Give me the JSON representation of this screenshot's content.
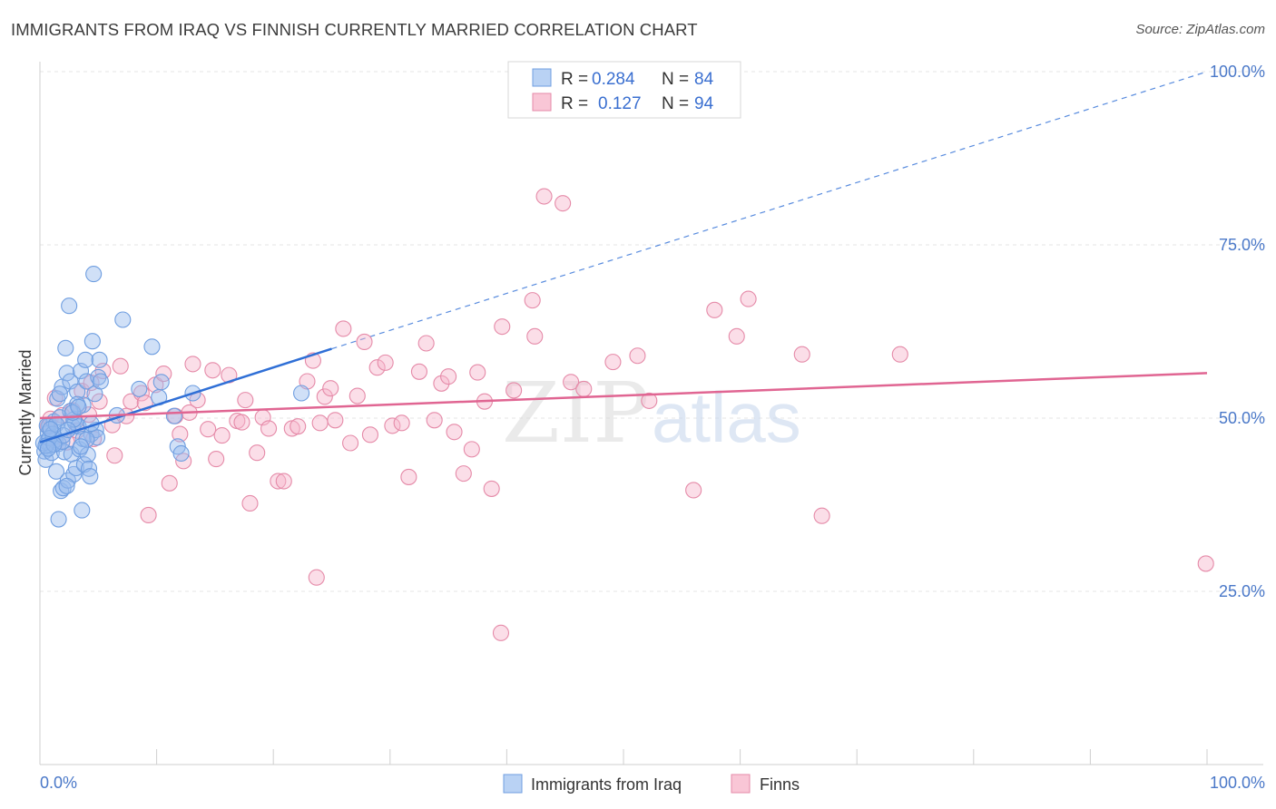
{
  "title": "IMMIGRANTS FROM IRAQ VS FINNISH CURRENTLY MARRIED CORRELATION CHART",
  "source": "Source: ZipAtlas.com",
  "watermark": {
    "zip": "ZIP",
    "atlas": "atlas"
  },
  "colors": {
    "blue": "#5b8fd9",
    "blue_line": "#2f6fd6",
    "pink": "#e58aa8",
    "pink_line": "#e06592",
    "tick": "#4a78c8"
  },
  "legend": {
    "rows": [
      {
        "r_label": "R =",
        "r_value": "0.284",
        "n_label": "N =",
        "n_value": "84"
      },
      {
        "r_label": "R =",
        "r_value": "0.127",
        "n_label": "N =",
        "n_value": "94"
      }
    ]
  },
  "chart_data": {
    "type": "scatter",
    "title": "IMMIGRANTS FROM IRAQ VS FINNISH CURRENTLY MARRIED CORRELATION CHART",
    "xlabel": "",
    "ylabel": "Currently Married",
    "xlim": [
      0,
      100
    ],
    "ylim": [
      0,
      105
    ],
    "x_tick_labels": [
      "0.0%",
      "100.0%"
    ],
    "y_ticks": [
      25,
      50,
      75,
      100
    ],
    "y_tick_labels": [
      "25.0%",
      "50.0%",
      "75.0%",
      "100.0%"
    ],
    "grid": true,
    "series": [
      {
        "name": "Immigrants from Iraq",
        "r": 0.284,
        "n": 84,
        "trend": {
          "x": [
            0,
            25
          ],
          "y": [
            46.5,
            60.0
          ],
          "extended_to": [
            100,
            100.0
          ]
        },
        "points": [
          [
            0.4,
            45.2
          ],
          [
            0.5,
            44.0
          ],
          [
            0.6,
            46.5
          ],
          [
            0.7,
            47.8
          ],
          [
            0.8,
            48.9
          ],
          [
            0.9,
            46.1
          ],
          [
            1.0,
            45.0
          ],
          [
            1.1,
            47.2
          ],
          [
            1.2,
            49.5
          ],
          [
            1.3,
            46.8
          ],
          [
            1.4,
            42.3
          ],
          [
            1.5,
            52.8
          ],
          [
            1.6,
            46.3
          ],
          [
            1.7,
            50.1
          ],
          [
            1.8,
            39.5
          ],
          [
            1.9,
            54.5
          ],
          [
            2.0,
            39.9
          ],
          [
            2.1,
            45.1
          ],
          [
            2.2,
            60.1
          ],
          [
            2.3,
            56.5
          ],
          [
            2.4,
            41.0
          ],
          [
            2.5,
            66.2
          ],
          [
            2.6,
            55.3
          ],
          [
            2.7,
            44.8
          ],
          [
            2.8,
            48.8
          ],
          [
            2.9,
            41.9
          ],
          [
            3.0,
            49.4
          ],
          [
            3.1,
            42.8
          ],
          [
            3.2,
            53.8
          ],
          [
            3.3,
            48.8
          ],
          [
            3.4,
            45.5
          ],
          [
            3.5,
            56.8
          ],
          [
            3.6,
            36.7
          ],
          [
            3.7,
            51.9
          ],
          [
            3.8,
            43.3
          ],
          [
            3.9,
            58.4
          ],
          [
            4.0,
            55.3
          ],
          [
            4.1,
            44.7
          ],
          [
            4.2,
            42.7
          ],
          [
            4.3,
            41.6
          ],
          [
            4.4,
            47.7
          ],
          [
            4.5,
            61.1
          ],
          [
            4.6,
            70.8
          ],
          [
            4.7,
            53.5
          ],
          [
            4.8,
            48.3
          ],
          [
            4.9,
            47.2
          ],
          [
            5.0,
            55.9
          ],
          [
            5.1,
            58.4
          ],
          [
            5.2,
            55.3
          ],
          [
            6.6,
            50.4
          ],
          [
            7.1,
            64.2
          ],
          [
            8.5,
            54.2
          ],
          [
            9.6,
            60.3
          ],
          [
            10.2,
            53.0
          ],
          [
            10.4,
            55.2
          ],
          [
            11.5,
            50.3
          ],
          [
            11.8,
            45.9
          ],
          [
            12.1,
            44.9
          ],
          [
            13.1,
            53.6
          ],
          [
            22.4,
            53.6
          ],
          [
            1.6,
            35.4
          ],
          [
            2.3,
            40.2
          ],
          [
            3.7,
            47.0
          ],
          [
            0.6,
            48.9
          ],
          [
            0.3,
            46.4
          ],
          [
            1.1,
            47.7
          ],
          [
            2.9,
            49.8
          ],
          [
            4.0,
            46.9
          ],
          [
            3.2,
            52.0
          ],
          [
            1.9,
            46.6
          ],
          [
            2.6,
            51.0
          ],
          [
            0.8,
            47.1
          ],
          [
            1.4,
            49.1
          ],
          [
            2.0,
            47.5
          ],
          [
            3.5,
            45.9
          ],
          [
            4.4,
            49.2
          ],
          [
            0.5,
            46.0
          ],
          [
            1.7,
            53.5
          ],
          [
            2.8,
            50.8
          ],
          [
            0.9,
            48.4
          ],
          [
            3.3,
            51.6
          ],
          [
            1.2,
            46.2
          ],
          [
            2.4,
            48.3
          ],
          [
            0.7,
            45.6
          ]
        ]
      },
      {
        "name": "Finns",
        "r": 0.127,
        "n": 94,
        "trend": {
          "x": [
            0,
            100
          ],
          "y": [
            50.0,
            56.5
          ]
        },
        "points": [
          [
            0.7,
            48.8
          ],
          [
            0.9,
            49.9
          ],
          [
            1.3,
            52.9
          ],
          [
            1.9,
            50.4
          ],
          [
            2.3,
            46.5
          ],
          [
            2.8,
            51.1
          ],
          [
            3.2,
            48.2
          ],
          [
            3.6,
            53.9
          ],
          [
            4.2,
            50.5
          ],
          [
            4.4,
            55.1
          ],
          [
            4.6,
            47.0
          ],
          [
            5.1,
            52.4
          ],
          [
            5.4,
            56.8
          ],
          [
            6.2,
            49.0
          ],
          [
            6.4,
            44.6
          ],
          [
            6.9,
            57.5
          ],
          [
            7.4,
            50.3
          ],
          [
            7.8,
            52.4
          ],
          [
            8.7,
            53.6
          ],
          [
            9.0,
            52.2
          ],
          [
            9.3,
            36.0
          ],
          [
            9.9,
            54.8
          ],
          [
            10.6,
            56.4
          ],
          [
            11.1,
            40.6
          ],
          [
            11.6,
            50.3
          ],
          [
            12.0,
            47.7
          ],
          [
            12.3,
            43.8
          ],
          [
            12.8,
            50.8
          ],
          [
            13.1,
            57.8
          ],
          [
            13.5,
            52.6
          ],
          [
            14.4,
            48.4
          ],
          [
            14.8,
            56.9
          ],
          [
            15.1,
            44.1
          ],
          [
            15.6,
            47.5
          ],
          [
            16.2,
            56.2
          ],
          [
            16.9,
            49.6
          ],
          [
            17.3,
            49.4
          ],
          [
            17.6,
            52.6
          ],
          [
            18.0,
            37.7
          ],
          [
            18.6,
            45.0
          ],
          [
            19.1,
            50.1
          ],
          [
            19.6,
            48.5
          ],
          [
            20.4,
            40.9
          ],
          [
            20.9,
            40.9
          ],
          [
            21.6,
            48.5
          ],
          [
            22.1,
            48.8
          ],
          [
            22.9,
            55.3
          ],
          [
            23.4,
            58.3
          ],
          [
            24.0,
            49.3
          ],
          [
            24.4,
            53.1
          ],
          [
            24.9,
            54.3
          ],
          [
            25.3,
            49.7
          ],
          [
            26.0,
            62.9
          ],
          [
            26.6,
            46.4
          ],
          [
            27.2,
            53.2
          ],
          [
            27.8,
            61.0
          ],
          [
            28.3,
            47.6
          ],
          [
            28.9,
            57.3
          ],
          [
            29.6,
            58.0
          ],
          [
            30.2,
            48.9
          ],
          [
            31.0,
            49.3
          ],
          [
            31.6,
            41.5
          ],
          [
            32.5,
            56.7
          ],
          [
            33.1,
            60.8
          ],
          [
            33.8,
            49.7
          ],
          [
            34.4,
            55.0
          ],
          [
            35.0,
            56.0
          ],
          [
            35.5,
            48.0
          ],
          [
            36.3,
            42.0
          ],
          [
            37.0,
            45.5
          ],
          [
            37.5,
            56.6
          ],
          [
            38.1,
            52.4
          ],
          [
            38.7,
            39.8
          ],
          [
            39.6,
            63.2
          ],
          [
            40.6,
            54.0
          ],
          [
            42.2,
            67.0
          ],
          [
            42.4,
            61.8
          ],
          [
            43.2,
            82.0
          ],
          [
            44.8,
            81.0
          ],
          [
            45.5,
            55.2
          ],
          [
            46.6,
            54.2
          ],
          [
            49.1,
            58.1
          ],
          [
            51.2,
            59.0
          ],
          [
            52.2,
            52.5
          ],
          [
            56.0,
            39.6
          ],
          [
            57.8,
            65.6
          ],
          [
            59.7,
            61.8
          ],
          [
            60.7,
            67.2
          ],
          [
            65.3,
            59.2
          ],
          [
            67.0,
            35.9
          ],
          [
            73.7,
            59.2
          ],
          [
            99.9,
            29.0
          ],
          [
            23.7,
            27.0
          ],
          [
            39.5,
            19.0
          ]
        ]
      }
    ]
  },
  "bottom_legend": [
    {
      "label": "Immigrants from Iraq"
    },
    {
      "label": "Finns"
    }
  ]
}
